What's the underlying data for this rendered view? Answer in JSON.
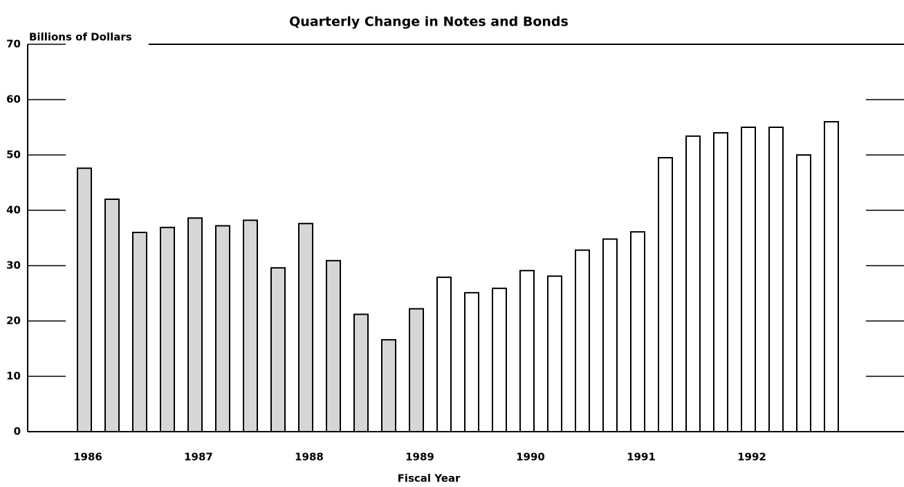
{
  "chart_data": {
    "type": "bar",
    "title": "Quarterly Change in Notes and Bonds",
    "y_label": "Billions of Dollars",
    "x_label": "Fiscal Year",
    "categories": [
      "1986",
      null,
      null,
      null,
      "1987",
      null,
      null,
      null,
      "1988",
      null,
      null,
      null,
      "1989",
      null,
      null,
      null,
      "1990",
      null,
      null,
      null,
      "1991",
      null,
      null,
      null,
      "1992",
      null,
      null,
      null
    ],
    "values": [
      47.6,
      42,
      36,
      36.9,
      38.6,
      37.2,
      38.2,
      29.6,
      37.6,
      30.9,
      21.2,
      16.6,
      22.2,
      27.9,
      25.1,
      25.9,
      29.1,
      28.1,
      32.8,
      34.8,
      36.1,
      49.5,
      53.4,
      54,
      55,
      55,
      50,
      56
    ],
    "colors": [
      "#d6d6d6",
      "#d6d6d6",
      "#d6d6d6",
      "#d6d6d6",
      "#d6d6d6",
      "#d6d6d6",
      "#d6d6d6",
      "#d6d6d6",
      "#d6d6d6",
      "#d6d6d6",
      "#d6d6d6",
      "#d6d6d6",
      "#d6d6d6",
      "#ffffff",
      "#ffffff",
      "#ffffff",
      "#ffffff",
      "#ffffff",
      "#ffffff",
      "#ffffff",
      "#ffffff",
      "#ffffff",
      "#ffffff",
      "#ffffff",
      "#ffffff",
      "#ffffff",
      "#ffffff",
      "#ffffff"
    ],
    "ylim": [
      0,
      70
    ],
    "yticks": [
      0,
      10,
      20,
      30,
      40,
      50,
      60,
      70
    ]
  }
}
